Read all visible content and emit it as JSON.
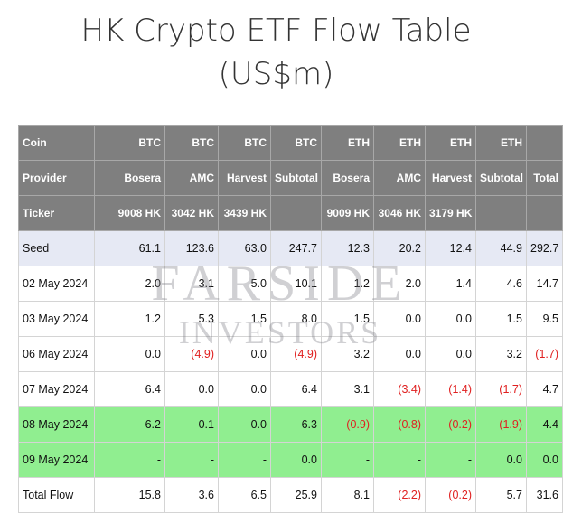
{
  "title_line1": "HK Crypto ETF Flow Table",
  "title_line2": "(US$m)",
  "watermark": {
    "line1": "FARSIDE",
    "line2": "INVESTORS"
  },
  "header": {
    "coin": [
      "Coin",
      "BTC",
      "BTC",
      "BTC",
      "BTC",
      "ETH",
      "ETH",
      "ETH",
      "ETH",
      ""
    ],
    "provider": [
      "Provider",
      "Bosera",
      "AMC",
      "Harvest",
      "Subtotal",
      "Bosera",
      "AMC",
      "Harvest",
      "Subtotal",
      "Total"
    ],
    "ticker": [
      "Ticker",
      "9008 HK",
      "3042 HK",
      "3439 HK",
      "",
      "9009 HK",
      "3046 HK",
      "3179 HK",
      "",
      ""
    ]
  },
  "rows": [
    {
      "cells": [
        "Seed",
        "61.1",
        "123.6",
        "63.0",
        "247.7",
        "12.3",
        "20.2",
        "12.4",
        "44.9",
        "292.7"
      ]
    },
    {
      "cells": [
        "02 May 2024",
        "2.0",
        "3.1",
        "5.0",
        "10.1",
        "1.2",
        "2.0",
        "1.4",
        "4.6",
        "14.7"
      ]
    },
    {
      "cells": [
        "03 May 2024",
        "1.2",
        "5.3",
        "1.5",
        "8.0",
        "1.5",
        "0.0",
        "0.0",
        "1.5",
        "9.5"
      ]
    },
    {
      "cells": [
        "06 May 2024",
        "0.0",
        "(4.9)",
        "0.0",
        "(4.9)",
        "3.2",
        "0.0",
        "0.0",
        "3.2",
        "(1.7)"
      ]
    },
    {
      "cells": [
        "07 May 2024",
        "6.4",
        "0.0",
        "0.0",
        "6.4",
        "3.1",
        "(3.4)",
        "(1.4)",
        "(1.7)",
        "4.7"
      ]
    },
    {
      "cells": [
        "08 May 2024",
        "6.2",
        "0.1",
        "0.0",
        "6.3",
        "(0.9)",
        "(0.8)",
        "(0.2)",
        "(1.9)",
        "4.4"
      ]
    },
    {
      "cells": [
        "09 May 2024",
        "-",
        "-",
        "-",
        "0.0",
        "-",
        "-",
        "-",
        "0.0",
        "0.0"
      ]
    },
    {
      "cells": [
        "Total Flow",
        "15.8",
        "3.6",
        "6.5",
        "25.9",
        "8.1",
        "(2.2)",
        "(0.2)",
        "5.7",
        "31.6"
      ]
    }
  ],
  "colors": {
    "header_bg": "#7f7f7f",
    "seed_bg": "#e6e9f4",
    "highlight_bg": "#90ee90",
    "negative": "#e02020"
  }
}
